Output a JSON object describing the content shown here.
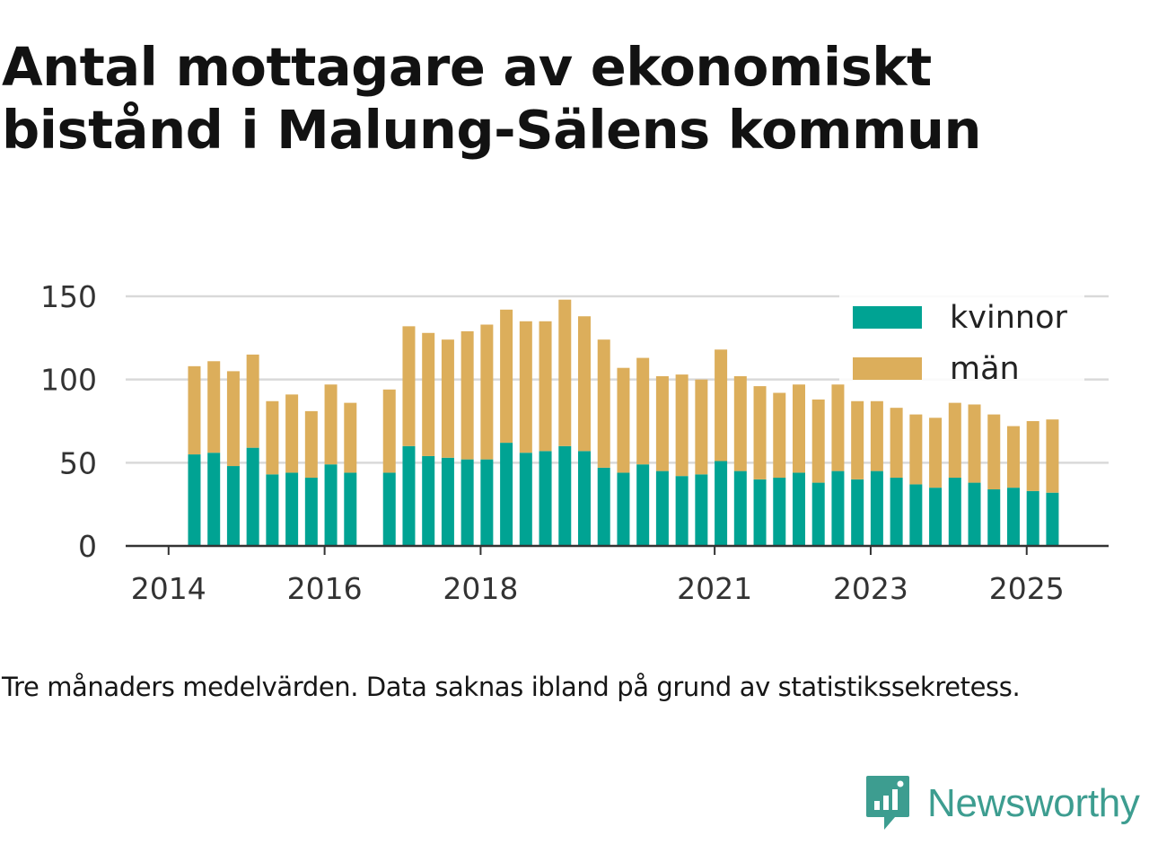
{
  "title": "Antal mottagare av ekonomiskt bistånd i Malung-Sälens kommun",
  "note": "Tre månaders medelvärden. Data saknas ibland på grund av statistikssekretess.",
  "brand": {
    "name": "Newsworthy",
    "icon": "newsworthy-logo-icon",
    "color": "#3d9d90"
  },
  "chart_data": {
    "type": "bar",
    "stacked": true,
    "x_label_ticks": [
      "2014",
      "2016",
      "2018",
      "2021",
      "2023",
      "2025"
    ],
    "x_tick_positions": [
      2014.0,
      2016.0,
      2018.0,
      2021.0,
      2023.0,
      2025.0
    ],
    "xlim": [
      2013.45,
      2026.05
    ],
    "ylim": [
      0,
      150
    ],
    "y_ticks": [
      0,
      50,
      100,
      150
    ],
    "grid": true,
    "legend_position": "top-right",
    "x": [
      2014.33,
      2014.58,
      2014.83,
      2015.08,
      2015.33,
      2015.58,
      2015.83,
      2016.08,
      2016.33,
      2016.83,
      2017.08,
      2017.33,
      2017.58,
      2017.83,
      2018.08,
      2018.33,
      2018.58,
      2018.83,
      2019.08,
      2019.33,
      2019.58,
      2019.83,
      2020.08,
      2020.33,
      2020.58,
      2020.83,
      2021.08,
      2021.33,
      2021.58,
      2021.83,
      2022.08,
      2022.33,
      2022.58,
      2022.83,
      2023.08,
      2023.33,
      2023.58,
      2023.83,
      2024.08,
      2024.33,
      2024.58,
      2024.83,
      2025.08,
      2025.33
    ],
    "series": [
      {
        "name": "kvinnor",
        "color": "#00a393",
        "values": [
          55,
          56,
          48,
          59,
          43,
          44,
          41,
          49,
          44,
          44,
          60,
          54,
          53,
          52,
          52,
          62,
          56,
          57,
          60,
          57,
          47,
          44,
          49,
          45,
          42,
          43,
          51,
          45,
          40,
          41,
          44,
          38,
          45,
          40,
          45,
          41,
          37,
          35,
          41,
          38,
          34,
          35,
          33,
          32
        ]
      },
      {
        "name": "män",
        "color": "#dcae5b",
        "values": [
          53,
          55,
          57,
          56,
          44,
          47,
          40,
          48,
          42,
          50,
          72,
          74,
          71,
          77,
          81,
          80,
          79,
          78,
          88,
          81,
          77,
          63,
          64,
          57,
          61,
          57,
          67,
          57,
          56,
          51,
          53,
          50,
          52,
          47,
          42,
          42,
          42,
          42,
          45,
          47,
          45,
          37,
          42,
          44
        ]
      }
    ]
  }
}
